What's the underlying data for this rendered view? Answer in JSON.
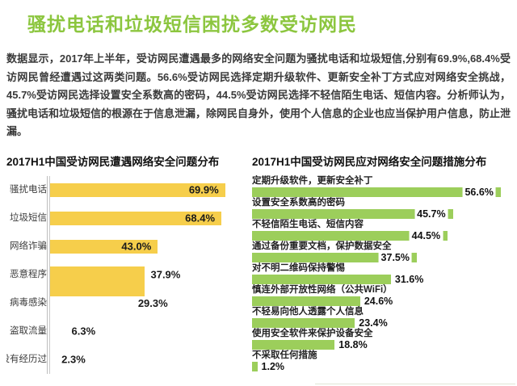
{
  "title": "骚扰电话和垃圾短信困扰多数受访网民",
  "intro": "数据显示，2017年上半年，受访网民遭遇最多的网络安全问题为骚扰电话和垃圾短信,分别有69.9%,68.4%受访网民曾经遭遇过这两类问题。56.6%受访网民选择定期升级软件、更新安全补丁方式应对网络安全挑战，45.7%受访网民选择设置安全系数高的密码，44.5%受访网民选择不轻信陌生电话、短信内容。分析师认为，骚扰电话和垃圾短信的根源在于信息泄漏，除网民自身外，使用个人信息的企业也应当保护用户信息，防止泄漏。",
  "colors": {
    "title_green": "#8CC63F",
    "bar_yellow": "#F6CE4B",
    "bar_green": "#9CCE5B"
  },
  "chart_data": [
    {
      "type": "bar",
      "orientation": "horizontal",
      "title": "2017H1中国受访网民遭遇网络安全问题分布",
      "categories": [
        "骚扰电话",
        "垃圾短信",
        "网络诈骗",
        "恶意程序",
        "病毒感染",
        "盗取流量",
        "没有经历过"
      ],
      "values": [
        69.9,
        68.4,
        43.0,
        37.9,
        29.3,
        6.3,
        2.3
      ],
      "value_labels": [
        "69.9%",
        "68.4%",
        "43.0%",
        "37.9%",
        "29.3%",
        "6.3%",
        "2.3%"
      ],
      "bar_color": "#F6CE4B",
      "xlim": [
        0,
        80
      ],
      "layout_hints": {
        "grid": false,
        "legend": "none",
        "bar_visible": [
          true,
          true,
          true,
          true,
          false,
          false,
          false
        ],
        "label_inside": [
          true,
          true,
          true,
          false,
          false,
          false,
          false
        ],
        "double_height_bar_index": 3,
        "wrapped_label_index": 4
      }
    },
    {
      "type": "bar",
      "orientation": "horizontal",
      "title": "2017H1中国受访网民应对网络安全问题措施分布",
      "categories": [
        "定期升级软件，更新安全补丁",
        "设置安全系数高的密码",
        "不轻信陌生电话、短信内容",
        "通过备份重要文档，保护数据安全",
        "对不明二维码保持警惕",
        "慎连外部开放性网络（公共WiFi）",
        "不轻易向他人透露个人信息",
        "使用安全软件来保护设备安全",
        "不采取任何措施"
      ],
      "values": [
        56.6,
        45.7,
        44.5,
        37.5,
        31.6,
        24.6,
        23.4,
        18.8,
        1.2
      ],
      "value_labels": [
        "56.6%",
        "45.7%",
        "44.5%",
        "37.5%",
        "31.6%",
        "24.6%",
        "23.4%",
        "18.8%",
        "1.2%"
      ],
      "bar_color": "#9CCE5B",
      "xlim": [
        0,
        60
      ],
      "layout_hints": {
        "grid": false,
        "legend": "none",
        "label_inside_min_value": 35
      }
    }
  ]
}
